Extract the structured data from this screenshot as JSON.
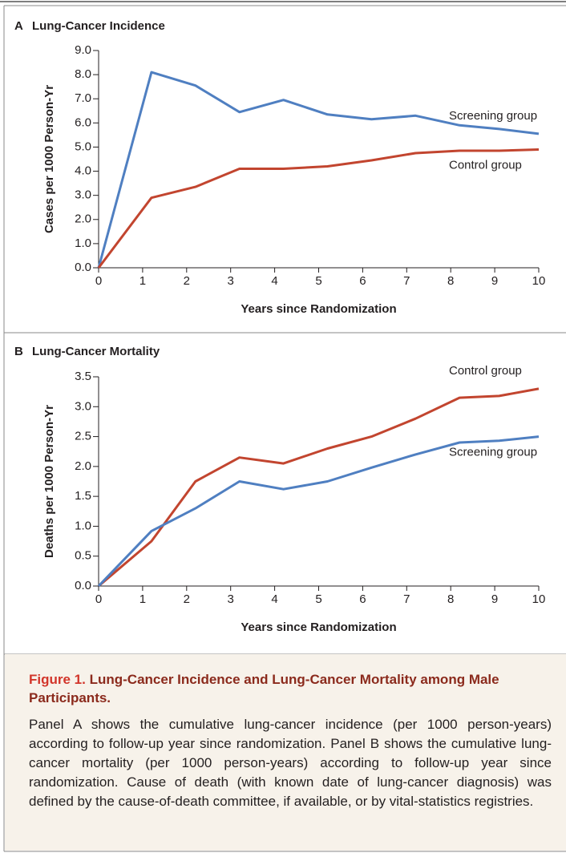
{
  "chart_data": [
    {
      "type": "line",
      "panel": "A",
      "title": "Lung-Cancer Incidence",
      "xlabel": "Years since Randomization",
      "ylabel": "Cases per 1000 Person-Yr",
      "x": [
        0,
        1.2,
        2.2,
        3.2,
        4.2,
        5.2,
        6.2,
        7.2,
        8.2,
        9.1,
        10
      ],
      "series": [
        {
          "name": "Screening group",
          "color": "#4f7fc1",
          "values": [
            0,
            8.1,
            7.55,
            6.45,
            6.95,
            6.35,
            6.15,
            6.3,
            5.9,
            5.75,
            5.55
          ]
        },
        {
          "name": "Control group",
          "color": "#c2452f",
          "values": [
            0,
            2.9,
            3.35,
            4.1,
            4.1,
            4.2,
            4.45,
            4.75,
            4.85,
            4.85,
            4.9
          ]
        }
      ],
      "xlim": [
        0,
        10
      ],
      "xticks": [
        0,
        1,
        2,
        3,
        4,
        5,
        6,
        7,
        8,
        9,
        10
      ],
      "ylim": [
        0,
        9
      ],
      "yticks": [
        {
          "value": 0,
          "label": "0.0"
        },
        {
          "value": 1,
          "label": "1.0"
        },
        {
          "value": 2,
          "label": "2.0"
        },
        {
          "value": 3,
          "label": "3.0"
        },
        {
          "value": 4,
          "label": "4.0"
        },
        {
          "value": 5,
          "label": "5.0"
        },
        {
          "value": 6,
          "label": "6.0"
        },
        {
          "value": 7,
          "label": "7.0"
        },
        {
          "value": 8,
          "label": "8.0"
        },
        {
          "value": 9,
          "label": "9.0"
        }
      ],
      "grid": false
    },
    {
      "type": "line",
      "panel": "B",
      "title": "Lung-Cancer Mortality",
      "xlabel": "Years since Randomization",
      "ylabel": "Deaths per 1000 Person-Yr",
      "x": [
        0,
        1.2,
        2.2,
        3.2,
        4.2,
        5.2,
        6.2,
        7.2,
        8.2,
        9.1,
        10
      ],
      "series": [
        {
          "name": "Control group",
          "color": "#c2452f",
          "values": [
            0,
            0.75,
            1.75,
            2.15,
            2.05,
            2.3,
            2.5,
            2.8,
            3.15,
            3.18,
            3.3
          ]
        },
        {
          "name": "Screening group",
          "color": "#4f7fc1",
          "values": [
            0,
            0.92,
            1.3,
            1.75,
            1.62,
            1.75,
            1.98,
            2.2,
            2.4,
            2.43,
            2.5
          ]
        }
      ],
      "xlim": [
        0,
        10
      ],
      "xticks": [
        0,
        1,
        2,
        3,
        4,
        5,
        6,
        7,
        8,
        9,
        10
      ],
      "ylim": [
        0,
        3.5
      ],
      "yticks": [
        {
          "value": 0,
          "label": "0.0"
        },
        {
          "value": 0.5,
          "label": "0.5"
        },
        {
          "value": 1,
          "label": "1.0"
        },
        {
          "value": 1.5,
          "label": "1.5"
        },
        {
          "value": 2,
          "label": "2.0"
        },
        {
          "value": 2.5,
          "label": "2.5"
        },
        {
          "value": 3,
          "label": "3.0"
        },
        {
          "value": 3.5,
          "label": "3.5"
        }
      ],
      "grid": false
    }
  ],
  "figure": {
    "label": "Figure 1.",
    "title": "Lung-Cancer Incidence and Lung-Cancer Mortality among Male Participants.",
    "text": "Panel A shows the cumulative lung-cancer incidence (per 1000 person-years) according to follow-up year since randomization. Panel B shows the cumulative lung-cancer mortality (per 1000 person-years) according to follow-up year since randomization. Cause of death (with known date of lung-cancer diagnosis) was defined by the cause-of-death committee, if available, or by vital-statistics registries."
  }
}
